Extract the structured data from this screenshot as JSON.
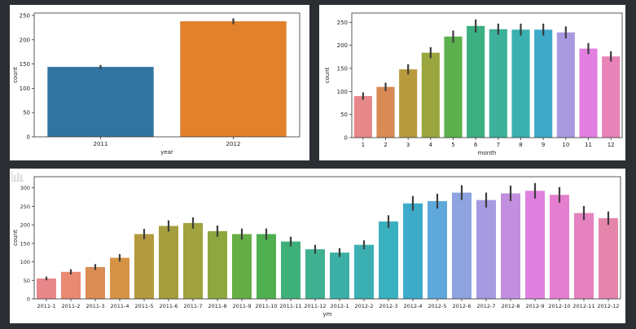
{
  "chart_data": [
    {
      "type": "bar",
      "title": "",
      "xlabel": "year",
      "ylabel": "count",
      "categories": [
        "2011",
        "2012"
      ],
      "values": [
        144,
        238
      ],
      "errors": [
        4,
        6
      ],
      "colors": [
        "#3274a1",
        "#e1812c"
      ],
      "ylim": [
        0,
        255
      ],
      "yticks": [
        0,
        50,
        100,
        150,
        200,
        250
      ],
      "grid": false
    },
    {
      "type": "bar",
      "title": "",
      "xlabel": "month",
      "ylabel": "count",
      "categories": [
        "1",
        "2",
        "3",
        "4",
        "5",
        "6",
        "7",
        "8",
        "9",
        "10",
        "11",
        "12"
      ],
      "values": [
        90,
        110,
        148,
        184,
        219,
        242,
        235,
        234,
        234,
        228,
        193,
        176
      ],
      "errors": [
        8,
        9,
        11,
        12,
        13,
        14,
        12,
        13,
        13,
        13,
        12,
        11
      ],
      "colors": [
        "#e8878a",
        "#d98a55",
        "#b79b3e",
        "#9aa63d",
        "#5bb04d",
        "#3db083",
        "#3eb19b",
        "#3ab0b0",
        "#3ea9c9",
        "#a99ae0",
        "#e37fe0",
        "#e884b8"
      ],
      "ylim": [
        0,
        270
      ],
      "yticks": [
        0,
        50,
        100,
        150,
        200,
        250
      ],
      "grid": false
    },
    {
      "type": "bar",
      "title": "",
      "xlabel": "ym",
      "ylabel": "count",
      "categories": [
        "2011-1",
        "2011-2",
        "2011-3",
        "2011-4",
        "2011-5",
        "2011-6",
        "2011-7",
        "2011-8",
        "2011-9",
        "2011-10",
        "2011-11",
        "2011-12",
        "2012-1",
        "2012-2",
        "2012-3",
        "2012-4",
        "2012-5",
        "2012-6",
        "2012-7",
        "2012-8",
        "2012-9",
        "2012-10",
        "2012-11",
        "2012-12"
      ],
      "values": [
        55,
        73,
        86,
        111,
        175,
        197,
        205,
        183,
        175,
        175,
        155,
        134,
        125,
        146,
        209,
        258,
        264,
        287,
        267,
        285,
        292,
        281,
        232,
        218
      ],
      "errors": [
        5,
        7,
        8,
        10,
        14,
        15,
        15,
        15,
        15,
        15,
        13,
        12,
        12,
        12,
        17,
        20,
        20,
        20,
        20,
        21,
        21,
        21,
        19,
        18
      ],
      "colors": [
        "#e8878a",
        "#e98974",
        "#db8d55",
        "#d69345",
        "#b49a3e",
        "#a59e3f",
        "#a0a33f",
        "#8fa73f",
        "#65ad45",
        "#50b04f",
        "#3eb17a",
        "#3fb191",
        "#3cb0a6",
        "#3bb0b3",
        "#3ab1bf",
        "#3eabcb",
        "#5fa8db",
        "#8ea3e0",
        "#a69be0",
        "#c28fe0",
        "#df82df",
        "#e47fcf",
        "#e582bf",
        "#e685ac"
      ],
      "ylim": [
        0,
        330
      ],
      "yticks": [
        0,
        50,
        100,
        150,
        200,
        250,
        300
      ],
      "grid": false
    }
  ]
}
